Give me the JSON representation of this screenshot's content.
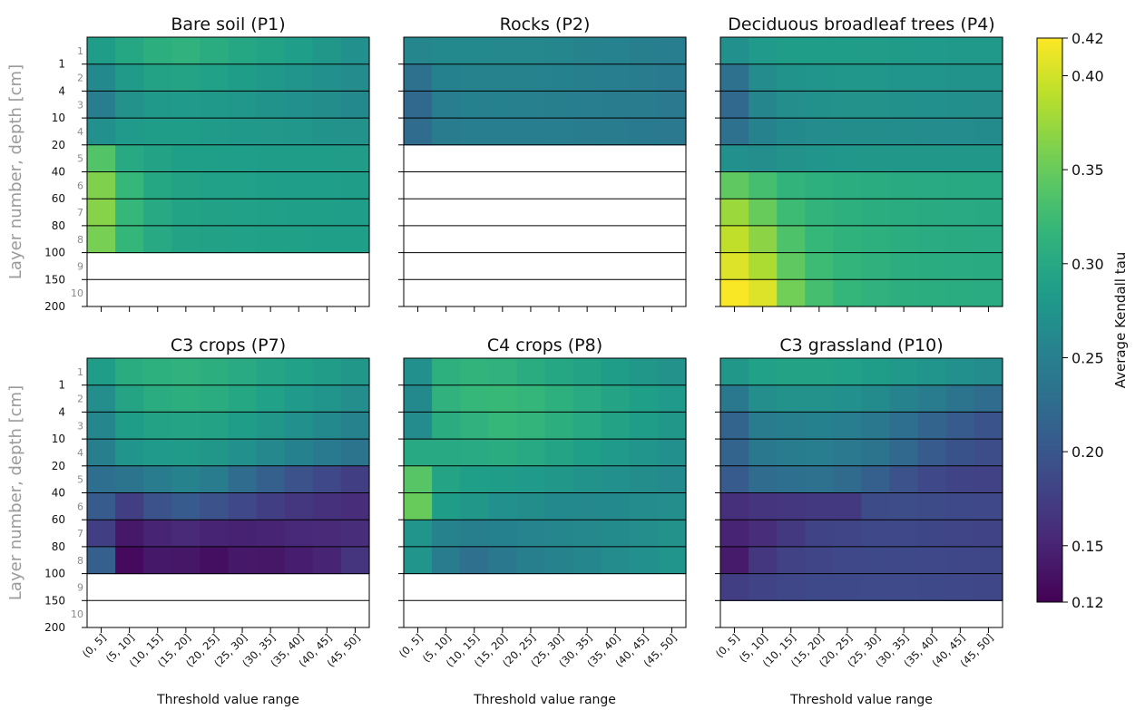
{
  "chart_data": {
    "type": "heatmap",
    "xlabel": "Threshold value range",
    "ylabel": "Layer number, depth [cm]",
    "categories": [
      "(0, 5]",
      "(5, 10]",
      "(10, 15]",
      "(15, 20]",
      "(20, 25]",
      "(25, 30]",
      "(30, 35]",
      "(35, 40]",
      "(40, 45]",
      "(45, 50]"
    ],
    "layer_numbers": [
      "1",
      "2",
      "3",
      "4",
      "5",
      "6",
      "7",
      "8",
      "9",
      "10"
    ],
    "depth_ticks": [
      "1",
      "4",
      "10",
      "20",
      "40",
      "60",
      "80",
      "100",
      "150",
      "200"
    ],
    "colorbar": {
      "label": "Average Kendall tau",
      "range": [
        0.12,
        0.42
      ],
      "ticks": [
        "0.40",
        "0.35",
        "0.30",
        "0.25",
        "0.20",
        "0.15"
      ],
      "end_labels": [
        "0.42",
        "0.12"
      ],
      "colormap": "viridis"
    },
    "panels": [
      {
        "title": "Bare soil (P1)",
        "values": [
          [
            0.285,
            0.298,
            0.308,
            0.312,
            0.305,
            0.298,
            0.293,
            0.287,
            0.278,
            0.27
          ],
          [
            0.262,
            0.283,
            0.292,
            0.295,
            0.29,
            0.286,
            0.281,
            0.276,
            0.27,
            0.265
          ],
          [
            0.248,
            0.272,
            0.28,
            0.282,
            0.28,
            0.277,
            0.274,
            0.27,
            0.266,
            0.262
          ],
          [
            0.27,
            0.282,
            0.285,
            0.285,
            0.283,
            0.281,
            0.279,
            0.277,
            0.274,
            0.272
          ],
          [
            0.338,
            0.3,
            0.292,
            0.288,
            0.288,
            0.287,
            0.286,
            0.285,
            0.285,
            0.284
          ],
          [
            0.362,
            0.32,
            0.298,
            0.292,
            0.29,
            0.29,
            0.288,
            0.287,
            0.287,
            0.286
          ],
          [
            0.365,
            0.32,
            0.3,
            0.293,
            0.291,
            0.29,
            0.289,
            0.288,
            0.288,
            0.287
          ],
          [
            0.358,
            0.318,
            0.3,
            0.292,
            0.291,
            0.29,
            0.289,
            0.289,
            0.288,
            0.288
          ],
          [
            null,
            null,
            null,
            null,
            null,
            null,
            null,
            null,
            null,
            null
          ],
          [
            null,
            null,
            null,
            null,
            null,
            null,
            null,
            null,
            null,
            null
          ]
        ]
      },
      {
        "title": "Rocks (P2)",
        "values": [
          [
            0.258,
            0.262,
            0.262,
            0.261,
            0.26,
            0.258,
            0.255,
            0.253,
            0.25,
            0.247
          ],
          [
            0.232,
            0.252,
            0.255,
            0.255,
            0.254,
            0.252,
            0.25,
            0.248,
            0.245,
            0.243
          ],
          [
            0.22,
            0.248,
            0.252,
            0.252,
            0.251,
            0.25,
            0.248,
            0.246,
            0.244,
            0.242
          ],
          [
            0.225,
            0.245,
            0.248,
            0.248,
            0.248,
            0.247,
            0.246,
            0.244,
            0.243,
            0.242
          ],
          [
            null,
            null,
            null,
            null,
            null,
            null,
            null,
            null,
            null,
            null
          ],
          [
            null,
            null,
            null,
            null,
            null,
            null,
            null,
            null,
            null,
            null
          ],
          [
            null,
            null,
            null,
            null,
            null,
            null,
            null,
            null,
            null,
            null
          ],
          [
            null,
            null,
            null,
            null,
            null,
            null,
            null,
            null,
            null,
            null
          ],
          [
            null,
            null,
            null,
            null,
            null,
            null,
            null,
            null,
            null,
            null
          ],
          [
            null,
            null,
            null,
            null,
            null,
            null,
            null,
            null,
            null,
            null
          ]
        ]
      },
      {
        "title": "Deciduous broadleaf trees (P4)",
        "values": [
          [
            0.27,
            0.282,
            0.285,
            0.285,
            0.285,
            0.284,
            0.283,
            0.282,
            0.281,
            0.28
          ],
          [
            0.232,
            0.265,
            0.273,
            0.276,
            0.277,
            0.277,
            0.276,
            0.275,
            0.274,
            0.273
          ],
          [
            0.22,
            0.258,
            0.268,
            0.271,
            0.272,
            0.272,
            0.271,
            0.27,
            0.269,
            0.268
          ],
          [
            0.232,
            0.255,
            0.262,
            0.265,
            0.266,
            0.266,
            0.266,
            0.265,
            0.265,
            0.264
          ],
          [
            0.27,
            0.268,
            0.272,
            0.275,
            0.277,
            0.278,
            0.278,
            0.278,
            0.278,
            0.278
          ],
          [
            0.345,
            0.33,
            0.315,
            0.31,
            0.307,
            0.305,
            0.303,
            0.302,
            0.301,
            0.3
          ],
          [
            0.375,
            0.35,
            0.325,
            0.315,
            0.31,
            0.307,
            0.305,
            0.303,
            0.302,
            0.301
          ],
          [
            0.392,
            0.368,
            0.335,
            0.32,
            0.313,
            0.309,
            0.306,
            0.304,
            0.303,
            0.302
          ],
          [
            0.405,
            0.383,
            0.345,
            0.325,
            0.316,
            0.311,
            0.307,
            0.305,
            0.304,
            0.303
          ],
          [
            0.418,
            0.405,
            0.355,
            0.33,
            0.318,
            0.312,
            0.308,
            0.306,
            0.305,
            0.304
          ]
        ]
      },
      {
        "title": "C3 crops (P7)",
        "values": [
          [
            0.285,
            0.305,
            0.31,
            0.312,
            0.308,
            0.302,
            0.296,
            0.29,
            0.284,
            0.278
          ],
          [
            0.268,
            0.295,
            0.305,
            0.308,
            0.305,
            0.298,
            0.29,
            0.282,
            0.275,
            0.268
          ],
          [
            0.258,
            0.285,
            0.292,
            0.295,
            0.292,
            0.286,
            0.278,
            0.27,
            0.262,
            0.255
          ],
          [
            0.25,
            0.275,
            0.282,
            0.283,
            0.278,
            0.27,
            0.26,
            0.252,
            0.243,
            0.235
          ],
          [
            0.228,
            0.235,
            0.245,
            0.255,
            0.245,
            0.225,
            0.21,
            0.195,
            0.185,
            0.175
          ],
          [
            0.205,
            0.175,
            0.195,
            0.205,
            0.195,
            0.185,
            0.175,
            0.168,
            0.162,
            0.158
          ],
          [
            0.175,
            0.14,
            0.15,
            0.155,
            0.15,
            0.148,
            0.15,
            0.153,
            0.155,
            0.158
          ],
          [
            0.21,
            0.128,
            0.14,
            0.138,
            0.132,
            0.14,
            0.138,
            0.145,
            0.15,
            0.165
          ],
          [
            null,
            null,
            null,
            null,
            null,
            null,
            null,
            null,
            null,
            null
          ],
          [
            null,
            null,
            null,
            null,
            null,
            null,
            null,
            null,
            null,
            null
          ]
        ]
      },
      {
        "title": "C4 crops (P8)",
        "values": [
          [
            0.27,
            0.31,
            0.315,
            0.312,
            0.305,
            0.298,
            0.292,
            0.285,
            0.278,
            0.272
          ],
          [
            0.262,
            0.312,
            0.32,
            0.322,
            0.318,
            0.31,
            0.302,
            0.295,
            0.288,
            0.282
          ],
          [
            0.265,
            0.305,
            0.312,
            0.32,
            0.316,
            0.308,
            0.3,
            0.292,
            0.285,
            0.278
          ],
          [
            0.3,
            0.3,
            0.302,
            0.305,
            0.3,
            0.295,
            0.288,
            0.282,
            0.276,
            0.27
          ],
          [
            0.34,
            0.295,
            0.288,
            0.285,
            0.282,
            0.278,
            0.274,
            0.27,
            0.266,
            0.263
          ],
          [
            0.35,
            0.285,
            0.278,
            0.27,
            0.266,
            0.262,
            0.26,
            0.262,
            0.265,
            0.268
          ],
          [
            0.275,
            0.255,
            0.25,
            0.252,
            0.256,
            0.258,
            0.26,
            0.264,
            0.268,
            0.272
          ],
          [
            0.275,
            0.245,
            0.23,
            0.24,
            0.25,
            0.255,
            0.258,
            0.265,
            0.27,
            0.275
          ],
          [
            null,
            null,
            null,
            null,
            null,
            null,
            null,
            null,
            null,
            null
          ],
          [
            null,
            null,
            null,
            null,
            null,
            null,
            null,
            null,
            null,
            null
          ]
        ]
      },
      {
        "title": "C3 grassland (P10)",
        "values": [
          [
            0.278,
            0.29,
            0.292,
            0.292,
            0.29,
            0.286,
            0.28,
            0.275,
            0.27,
            0.265
          ],
          [
            0.24,
            0.268,
            0.272,
            0.272,
            0.27,
            0.264,
            0.255,
            0.245,
            0.235,
            0.225
          ],
          [
            0.215,
            0.245,
            0.25,
            0.252,
            0.248,
            0.24,
            0.228,
            0.215,
            0.205,
            0.198
          ],
          [
            0.215,
            0.24,
            0.245,
            0.247,
            0.242,
            0.235,
            0.22,
            0.205,
            0.196,
            0.19
          ],
          [
            0.205,
            0.225,
            0.228,
            0.232,
            0.224,
            0.21,
            0.195,
            0.185,
            0.18,
            0.178
          ],
          [
            0.16,
            0.165,
            0.168,
            0.17,
            0.17,
            0.188,
            0.19,
            0.188,
            0.186,
            0.185
          ],
          [
            0.15,
            0.158,
            0.17,
            0.18,
            0.182,
            0.185,
            0.185,
            0.183,
            0.182,
            0.18
          ],
          [
            0.142,
            0.168,
            0.178,
            0.182,
            0.185,
            0.186,
            0.186,
            0.185,
            0.184,
            0.183
          ],
          [
            0.175,
            0.18,
            0.184,
            0.186,
            0.186,
            0.187,
            0.187,
            0.186,
            0.185,
            0.184
          ],
          [
            null,
            null,
            null,
            null,
            null,
            null,
            null,
            null,
            null,
            null
          ]
        ]
      }
    ]
  }
}
